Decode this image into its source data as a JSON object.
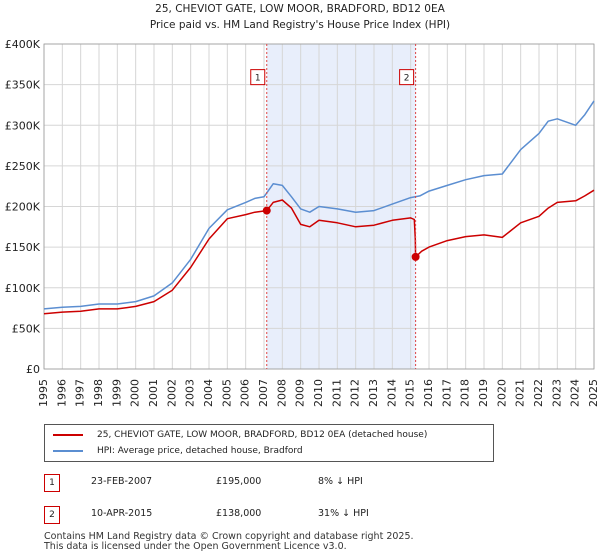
{
  "chart_data": {
    "type": "line",
    "title": "25, CHEVIOT GATE, LOW MOOR, BRADFORD, BD12 0EA",
    "subtitle": "Price paid vs. HM Land Registry's House Price Index (HPI)",
    "xlabel": "",
    "ylabel": "",
    "xlim": [
      1995,
      2025
    ],
    "ylim": [
      0,
      400000
    ],
    "x_ticks": [
      "1995",
      "1996",
      "1997",
      "1998",
      "1999",
      "2000",
      "2001",
      "2002",
      "2003",
      "2004",
      "2005",
      "2006",
      "2007",
      "2008",
      "2009",
      "2010",
      "2011",
      "2012",
      "2013",
      "2014",
      "2015",
      "2016",
      "2017",
      "2018",
      "2019",
      "2020",
      "2021",
      "2022",
      "2023",
      "2024",
      "2025"
    ],
    "y_ticks": [
      {
        "value": 0,
        "label": "£0"
      },
      {
        "value": 50000,
        "label": "£50K"
      },
      {
        "value": 100000,
        "label": "£100K"
      },
      {
        "value": 150000,
        "label": "£150K"
      },
      {
        "value": 200000,
        "label": "£200K"
      },
      {
        "value": 250000,
        "label": "£250K"
      },
      {
        "value": 300000,
        "label": "£300K"
      },
      {
        "value": 350000,
        "label": "£350K"
      },
      {
        "value": 400000,
        "label": "£400K"
      }
    ],
    "grid": true,
    "shaded_region": {
      "from": 2007.15,
      "to": 2015.27
    },
    "series": [
      {
        "name": "25, CHEVIOT GATE, LOW MOOR, BRADFORD, BD12 0EA (detached house)",
        "color": "#cc0000",
        "x": [
          1995,
          1996,
          1997,
          1998,
          1999,
          2000,
          2001,
          2002,
          2003,
          2004,
          2005,
          2006,
          2006.5,
          2007.15,
          2007.5,
          2008,
          2008.5,
          2009,
          2009.5,
          2010,
          2011,
          2012,
          2013,
          2014,
          2015,
          2015.2,
          2015.25,
          2015.27,
          2015.6,
          2016,
          2017,
          2018,
          2019,
          2020,
          2021,
          2022,
          2022.5,
          2023,
          2024,
          2024.5,
          2025
        ],
        "y": [
          68000,
          70000,
          71000,
          74000,
          74000,
          77000,
          83000,
          97000,
          125000,
          160000,
          185000,
          190000,
          193000,
          195000,
          205000,
          208000,
          198000,
          178000,
          175000,
          183000,
          180000,
          175000,
          177000,
          183000,
          186000,
          184000,
          160000,
          138000,
          145000,
          150000,
          158000,
          163000,
          165000,
          162000,
          180000,
          188000,
          198000,
          205000,
          207000,
          213000,
          220000
        ]
      },
      {
        "name": "HPI: Average price, detached house, Bradford",
        "color": "#5b8ed1",
        "x": [
          1995,
          1996,
          1997,
          1998,
          1999,
          2000,
          2001,
          2002,
          2003,
          2004,
          2005,
          2006,
          2006.5,
          2007,
          2007.5,
          2008,
          2008.5,
          2009,
          2009.5,
          2010,
          2011,
          2012,
          2013,
          2014,
          2015,
          2015.5,
          2016,
          2017,
          2018,
          2019,
          2020,
          2020.5,
          2021,
          2022,
          2022.5,
          2023,
          2024,
          2024.5,
          2025
        ],
        "y": [
          74000,
          76000,
          77000,
          80000,
          80000,
          83000,
          90000,
          106000,
          135000,
          173000,
          196000,
          205000,
          210000,
          212000,
          228000,
          226000,
          212000,
          197000,
          193000,
          200000,
          197000,
          193000,
          195000,
          203000,
          211000,
          213000,
          219000,
          226000,
          233000,
          238000,
          240000,
          255000,
          270000,
          290000,
          305000,
          308000,
          300000,
          313000,
          330000
        ]
      }
    ],
    "markers": [
      {
        "label": "1",
        "x": 2007.15,
        "y": 195000
      },
      {
        "label": "2",
        "x": 2015.27,
        "y": 138000
      }
    ]
  },
  "legend": {
    "items": [
      {
        "label": "25, CHEVIOT GATE, LOW MOOR, BRADFORD, BD12 0EA (detached house)",
        "color": "#cc0000"
      },
      {
        "label": "HPI: Average price, detached house, Bradford",
        "color": "#5b8ed1"
      }
    ]
  },
  "sales": [
    {
      "num": "1",
      "date": "23-FEB-2007",
      "price": "£195,000",
      "hpi": "8% ↓ HPI"
    },
    {
      "num": "2",
      "date": "10-APR-2015",
      "price": "£138,000",
      "hpi": "31% ↓ HPI"
    }
  ],
  "footer": {
    "line1": "Contains HM Land Registry data © Crown copyright and database right 2025.",
    "line2": "This data is licensed under the Open Government Licence v3.0."
  }
}
